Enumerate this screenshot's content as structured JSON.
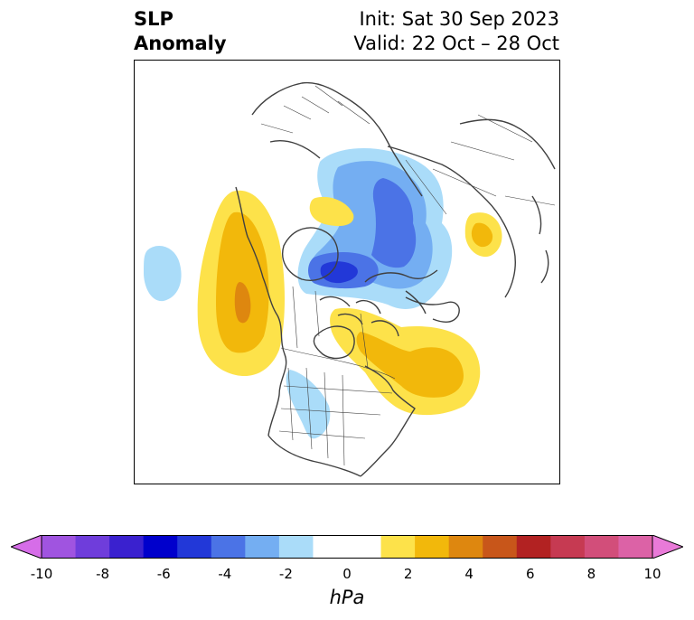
{
  "header": {
    "title_line1": "SLP",
    "title_line2": "Anomaly",
    "init_text": "Init: Sat 30 Sep 2023",
    "valid_text": "Valid: 22 Oct – 28 Oct"
  },
  "colorbar": {
    "label": "hPa",
    "ticks": [
      "-10",
      "-8",
      "-6",
      "-4",
      "-2",
      "0",
      "2",
      "4",
      "6",
      "8",
      "10"
    ],
    "colors": [
      "#d66de8",
      "#a054e0",
      "#6f3ddb",
      "#3a21cf",
      "#0000cc",
      "#2238d8",
      "#4b73e6",
      "#74aef2",
      "#aadcf9",
      "#ffffff",
      "#ffffff",
      "#fde24a",
      "#f2b80b",
      "#de870f",
      "#c8561a",
      "#b22222",
      "#c63a52",
      "#d24e7a",
      "#dc62a6",
      "#e97ad8"
    ]
  },
  "map": {
    "anomaly_colors": {
      "neg2": "#aadcf9",
      "neg3": "#74aef2",
      "neg4": "#4b73e6",
      "neg5": "#2238d8",
      "pos2": "#fde24a",
      "pos3": "#f2b80b",
      "pos4": "#de870f"
    },
    "coast_color": "#404040"
  }
}
